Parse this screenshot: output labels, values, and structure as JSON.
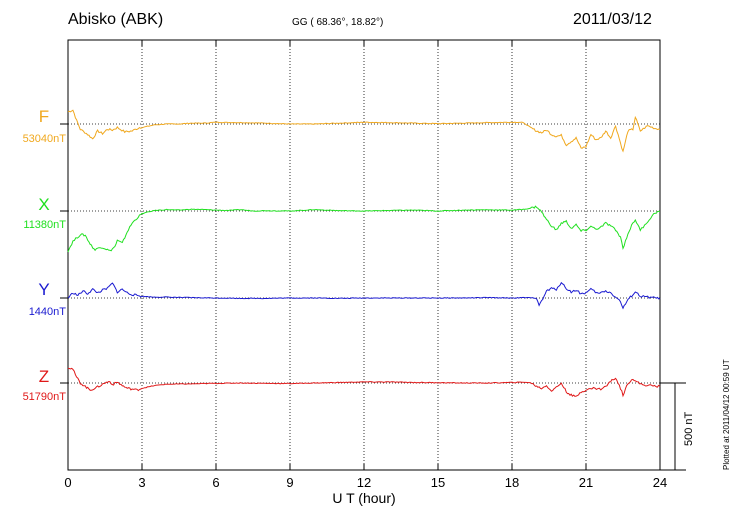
{
  "header": {
    "station": "Abisko (ABK)",
    "coords": "GG ( 68.36°,  18.82°)",
    "date": "2011/03/12"
  },
  "footer": {
    "plotted": "Plotted at 2011/04/12 00:59 UT"
  },
  "chart_data": {
    "type": "line",
    "title": "Abisko (ABK)",
    "xlabel": "U T (hour)",
    "xlim": [
      0,
      24
    ],
    "xticks": [
      "0",
      "3",
      "6",
      "9",
      "12",
      "15",
      "18",
      "21",
      "24"
    ],
    "grid": "vertical dotted at every 3 h, dotted baseline per component",
    "scale_bar": {
      "label": "500 nT",
      "value_nT": 500
    },
    "series": [
      {
        "name": "F",
        "baseline_label": "53040nT",
        "baseline_nT": 53040,
        "color": "#f0a81e",
        "points": [
          [
            0,
            53110
          ],
          [
            0.2,
            53120
          ],
          [
            0.35,
            53060
          ],
          [
            0.5,
            53010
          ],
          [
            0.8,
            52980
          ],
          [
            1,
            52955
          ],
          [
            1.2,
            53000
          ],
          [
            1.4,
            52985
          ],
          [
            1.6,
            53010
          ],
          [
            1.8,
            53005
          ],
          [
            2,
            53020
          ],
          [
            2.3,
            52995
          ],
          [
            2.6,
            53000
          ],
          [
            2.9,
            53020
          ],
          [
            3,
            53020
          ],
          [
            3.5,
            53035
          ],
          [
            4,
            53040
          ],
          [
            4.5,
            53040
          ],
          [
            5,
            53045
          ],
          [
            5.5,
            53045
          ],
          [
            6,
            53050
          ],
          [
            7,
            53048
          ],
          [
            8,
            53045
          ],
          [
            9,
            53040
          ],
          [
            10,
            53040
          ],
          [
            11,
            53045
          ],
          [
            12,
            53050
          ],
          [
            13,
            53048
          ],
          [
            14,
            53045
          ],
          [
            15,
            53042
          ],
          [
            16,
            53045
          ],
          [
            17,
            53048
          ],
          [
            18,
            53050
          ],
          [
            18.4,
            53050
          ],
          [
            18.6,
            53035
          ],
          [
            18.8,
            53015
          ],
          [
            19,
            53000
          ],
          [
            19.2,
            52990
          ],
          [
            19.4,
            53005
          ],
          [
            19.6,
            52980
          ],
          [
            19.8,
            52970
          ],
          [
            20,
            52975
          ],
          [
            20.2,
            52920
          ],
          [
            20.4,
            52940
          ],
          [
            20.6,
            52960
          ],
          [
            20.8,
            52900
          ],
          [
            21,
            52910
          ],
          [
            21.2,
            52980
          ],
          [
            21.4,
            52950
          ],
          [
            21.6,
            52960
          ],
          [
            21.8,
            53000
          ],
          [
            22,
            52960
          ],
          [
            22.2,
            53030
          ],
          [
            22.4,
            52930
          ],
          [
            22.5,
            52880
          ],
          [
            22.7,
            53000
          ],
          [
            22.9,
            53010
          ],
          [
            23,
            53080
          ],
          [
            23.2,
            53000
          ],
          [
            23.5,
            53030
          ],
          [
            23.8,
            53015
          ],
          [
            24,
            53010
          ]
        ]
      },
      {
        "name": "X",
        "baseline_label": "11380nT",
        "baseline_nT": 11380,
        "color": "#20e020",
        "points": [
          [
            0,
            11150
          ],
          [
            0.2,
            11205
          ],
          [
            0.5,
            11245
          ],
          [
            0.7,
            11240
          ],
          [
            0.9,
            11190
          ],
          [
            1.1,
            11155
          ],
          [
            1.3,
            11175
          ],
          [
            1.5,
            11165
          ],
          [
            1.7,
            11150
          ],
          [
            1.9,
            11175
          ],
          [
            2,
            11210
          ],
          [
            2.2,
            11195
          ],
          [
            2.4,
            11260
          ],
          [
            2.6,
            11310
          ],
          [
            2.8,
            11340
          ],
          [
            3,
            11365
          ],
          [
            3.5,
            11383
          ],
          [
            4,
            11388
          ],
          [
            4.5,
            11385
          ],
          [
            5,
            11390
          ],
          [
            5.5,
            11388
          ],
          [
            6,
            11385
          ],
          [
            6.5,
            11383
          ],
          [
            7,
            11388
          ],
          [
            7.5,
            11380
          ],
          [
            8,
            11382
          ],
          [
            9,
            11380
          ],
          [
            10,
            11388
          ],
          [
            11,
            11382
          ],
          [
            12,
            11380
          ],
          [
            13,
            11383
          ],
          [
            14,
            11385
          ],
          [
            15,
            11380
          ],
          [
            16,
            11385
          ],
          [
            17,
            11387
          ],
          [
            18,
            11385
          ],
          [
            18.3,
            11388
          ],
          [
            18.5,
            11390
          ],
          [
            18.8,
            11398
          ],
          [
            19,
            11405
          ],
          [
            19.2,
            11375
          ],
          [
            19.4,
            11330
          ],
          [
            19.6,
            11295
          ],
          [
            19.8,
            11270
          ],
          [
            20,
            11310
          ],
          [
            20.2,
            11320
          ],
          [
            20.4,
            11280
          ],
          [
            20.6,
            11300
          ],
          [
            20.8,
            11265
          ],
          [
            21,
            11270
          ],
          [
            21.2,
            11290
          ],
          [
            21.5,
            11275
          ],
          [
            21.8,
            11310
          ],
          [
            22,
            11295
          ],
          [
            22.2,
            11270
          ],
          [
            22.4,
            11230
          ],
          [
            22.5,
            11165
          ],
          [
            22.7,
            11250
          ],
          [
            22.9,
            11310
          ],
          [
            23,
            11330
          ],
          [
            23.2,
            11270
          ],
          [
            23.5,
            11320
          ],
          [
            23.8,
            11370
          ],
          [
            24,
            11378
          ]
        ]
      },
      {
        "name": "Y",
        "baseline_label": "1440nT",
        "baseline_nT": 1440,
        "color": "#1a1ad0",
        "points": [
          [
            0,
            1440
          ],
          [
            0.2,
            1470
          ],
          [
            0.4,
            1455
          ],
          [
            0.6,
            1480
          ],
          [
            0.8,
            1465
          ],
          [
            1,
            1490
          ],
          [
            1.2,
            1470
          ],
          [
            1.4,
            1485
          ],
          [
            1.6,
            1495
          ],
          [
            1.8,
            1525
          ],
          [
            2,
            1475
          ],
          [
            2.2,
            1490
          ],
          [
            2.4,
            1470
          ],
          [
            2.6,
            1460
          ],
          [
            2.8,
            1455
          ],
          [
            3,
            1450
          ],
          [
            3.5,
            1445
          ],
          [
            4,
            1445
          ],
          [
            5,
            1442
          ],
          [
            6,
            1440
          ],
          [
            7,
            1438
          ],
          [
            8,
            1438
          ],
          [
            9,
            1440
          ],
          [
            10,
            1440
          ],
          [
            11,
            1438
          ],
          [
            12,
            1440
          ],
          [
            13,
            1440
          ],
          [
            14,
            1440
          ],
          [
            15,
            1440
          ],
          [
            16,
            1440
          ],
          [
            17,
            1442
          ],
          [
            18,
            1440
          ],
          [
            18.5,
            1442
          ],
          [
            19,
            1440
          ],
          [
            19.1,
            1400
          ],
          [
            19.2,
            1420
          ],
          [
            19.4,
            1480
          ],
          [
            19.6,
            1495
          ],
          [
            19.8,
            1490
          ],
          [
            20,
            1530
          ],
          [
            20.2,
            1495
          ],
          [
            20.4,
            1475
          ],
          [
            20.6,
            1485
          ],
          [
            20.8,
            1465
          ],
          [
            21,
            1470
          ],
          [
            21.2,
            1490
          ],
          [
            21.5,
            1465
          ],
          [
            21.8,
            1480
          ],
          [
            22,
            1470
          ],
          [
            22.2,
            1445
          ],
          [
            22.4,
            1420
          ],
          [
            22.5,
            1380
          ],
          [
            22.7,
            1430
          ],
          [
            22.9,
            1460
          ],
          [
            23,
            1475
          ],
          [
            23.2,
            1450
          ],
          [
            23.5,
            1445
          ],
          [
            23.8,
            1440
          ],
          [
            24,
            1440
          ]
        ]
      },
      {
        "name": "Z",
        "baseline_label": "51790nT",
        "baseline_nT": 51790,
        "color": "#e01818",
        "points": [
          [
            0,
            51880
          ],
          [
            0.2,
            51870
          ],
          [
            0.3,
            51835
          ],
          [
            0.5,
            51790
          ],
          [
            0.7,
            51770
          ],
          [
            0.9,
            51750
          ],
          [
            1.1,
            51760
          ],
          [
            1.3,
            51775
          ],
          [
            1.5,
            51790
          ],
          [
            1.7,
            51800
          ],
          [
            1.8,
            51780
          ],
          [
            2,
            51795
          ],
          [
            2.2,
            51775
          ],
          [
            2.4,
            51760
          ],
          [
            2.6,
            51755
          ],
          [
            2.8,
            51750
          ],
          [
            3,
            51760
          ],
          [
            3.5,
            51775
          ],
          [
            4,
            51783
          ],
          [
            5,
            51785
          ],
          [
            6,
            51788
          ],
          [
            7,
            51790
          ],
          [
            8,
            51788
          ],
          [
            9,
            51787
          ],
          [
            10,
            51790
          ],
          [
            11,
            51793
          ],
          [
            12,
            51796
          ],
          [
            13,
            51796
          ],
          [
            14,
            51793
          ],
          [
            15,
            51792
          ],
          [
            16,
            51790
          ],
          [
            17,
            51790
          ],
          [
            18,
            51793
          ],
          [
            18.5,
            51795
          ],
          [
            18.8,
            51790
          ],
          [
            19,
            51770
          ],
          [
            19.2,
            51760
          ],
          [
            19.4,
            51775
          ],
          [
            19.6,
            51745
          ],
          [
            19.8,
            51765
          ],
          [
            20,
            51790
          ],
          [
            20.2,
            51740
          ],
          [
            20.4,
            51720
          ],
          [
            20.6,
            51710
          ],
          [
            20.8,
            51740
          ],
          [
            21,
            51750
          ],
          [
            21.3,
            51760
          ],
          [
            21.6,
            51755
          ],
          [
            21.8,
            51770
          ],
          [
            22,
            51800
          ],
          [
            22.2,
            51820
          ],
          [
            22.4,
            51760
          ],
          [
            22.5,
            51720
          ],
          [
            22.7,
            51790
          ],
          [
            22.9,
            51815
          ],
          [
            23,
            51800
          ],
          [
            23.3,
            51780
          ],
          [
            23.6,
            51775
          ],
          [
            24,
            51770
          ]
        ]
      }
    ]
  }
}
